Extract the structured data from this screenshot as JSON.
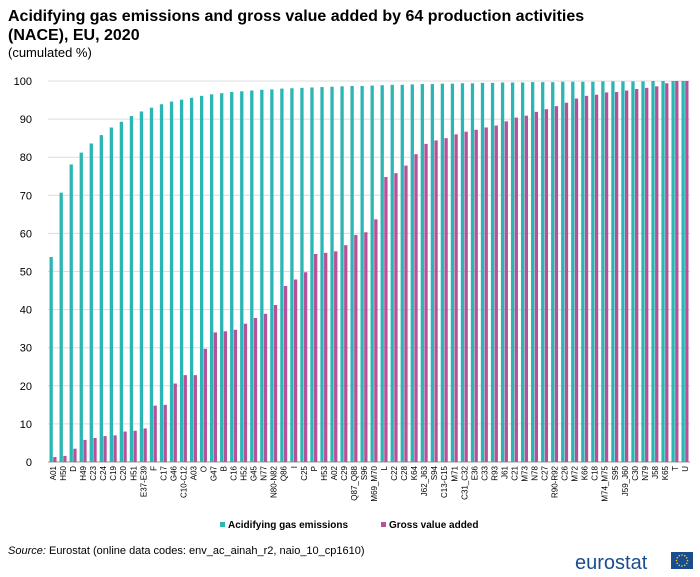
{
  "chart_data": {
    "type": "bar",
    "title": "Acidifying gas emissions and gross value added by 64 production activities (NACE), EU, 2020",
    "subtitle": "(cumulated  %)",
    "ylim": [
      0,
      100
    ],
    "yticks": [
      0,
      10,
      20,
      30,
      40,
      50,
      60,
      70,
      80,
      90,
      100
    ],
    "grid": true,
    "legend_position": "bottom",
    "categories": [
      "A01",
      "H50",
      "D",
      "H49",
      "C23",
      "C24",
      "C19",
      "C20",
      "H51",
      "E37-E39",
      "F",
      "C17",
      "G46",
      "C10-C12",
      "A03",
      "O",
      "G47",
      "B",
      "C16",
      "H52",
      "G45",
      "N77",
      "N80-N82",
      "Q86",
      "I",
      "C25",
      "P",
      "H53",
      "A02",
      "C29",
      "Q87_Q88",
      "S96",
      "M69_M70",
      "L",
      "C22",
      "C28",
      "K64",
      "J62_J63",
      "S94",
      "C13-C15",
      "M71",
      "C31_C32",
      "E36",
      "C33",
      "R93",
      "J61",
      "C21",
      "M73",
      "N78",
      "C27",
      "R90-R92",
      "C26",
      "M72",
      "K66",
      "C18",
      "M74_M75",
      "S95",
      "J59_J60",
      "C30",
      "N79",
      "J58",
      "K65",
      "T",
      "U"
    ],
    "series": [
      {
        "name": "Acidifying gas emissions",
        "color": "#2cb5b5",
        "values": [
          53.8,
          70.7,
          78.1,
          81.2,
          83.6,
          85.8,
          87.8,
          89.3,
          90.8,
          92.0,
          93.0,
          93.9,
          94.6,
          95.1,
          95.6,
          96.1,
          96.5,
          96.8,
          97.1,
          97.3,
          97.5,
          97.7,
          97.8,
          98.0,
          98.1,
          98.2,
          98.3,
          98.4,
          98.5,
          98.6,
          98.7,
          98.7,
          98.8,
          98.9,
          99.0,
          99.0,
          99.1,
          99.2,
          99.2,
          99.3,
          99.3,
          99.4,
          99.4,
          99.5,
          99.5,
          99.6,
          99.6,
          99.6,
          99.7,
          99.7,
          99.7,
          99.8,
          99.8,
          99.8,
          99.8,
          99.9,
          99.9,
          99.9,
          99.9,
          99.9,
          100,
          100,
          100,
          100
        ]
      },
      {
        "name": "Gross value added",
        "color": "#b5539a",
        "values": [
          1.3,
          1.6,
          3.5,
          5.8,
          6.3,
          6.8,
          7.0,
          8.0,
          8.2,
          8.8,
          14.8,
          15.0,
          20.6,
          22.8,
          22.8,
          29.7,
          34.0,
          34.3,
          34.7,
          36.3,
          37.8,
          38.9,
          41.2,
          46.2,
          47.9,
          49.8,
          54.6,
          54.9,
          55.3,
          56.9,
          59.6,
          60.3,
          63.7,
          74.8,
          75.8,
          77.8,
          80.8,
          83.5,
          84.4,
          85.0,
          86.0,
          86.7,
          87.2,
          87.8,
          88.3,
          89.4,
          90.4,
          90.9,
          91.9,
          92.6,
          93.4,
          94.3,
          95.4,
          96.1,
          96.4,
          97.0,
          97.1,
          97.5,
          97.9,
          98.2,
          98.6,
          99.4,
          100,
          100
        ]
      }
    ]
  },
  "source": {
    "label": "Source:",
    "text": " Eurostat (online data codes: env_ac_ainah_r2, naio_10_cp1610)"
  },
  "logo": {
    "text": "eurostat"
  }
}
